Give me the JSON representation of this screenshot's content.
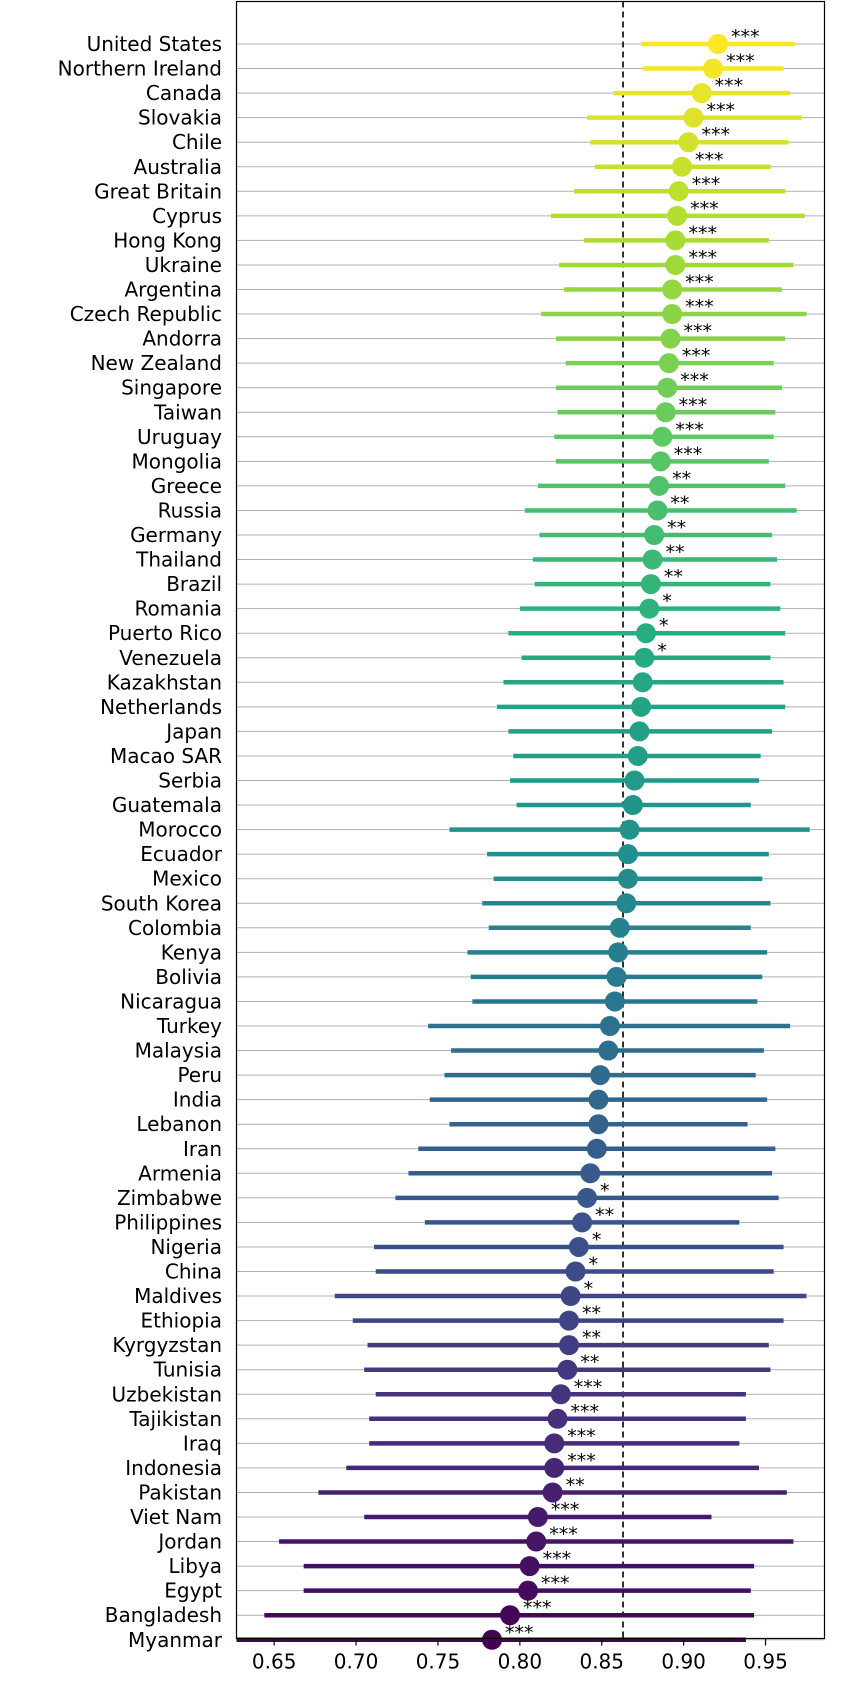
{
  "chart_data": {
    "type": "scatter",
    "title": "",
    "xlabel": "",
    "ylabel": "",
    "xlim": [
      0.627,
      0.986
    ],
    "xticks": [
      0.65,
      0.7,
      0.75,
      0.8,
      0.85,
      0.9,
      0.95
    ],
    "xtick_labels": [
      "0.65",
      "0.70",
      "0.75",
      "0.80",
      "0.85",
      "0.90",
      "0.95"
    ],
    "reference_line": 0.863,
    "grid": "horizontal",
    "colormap": "viridis",
    "points": [
      {
        "country": "United States",
        "value": 0.921,
        "low": 0.874,
        "high": 0.968,
        "sig": "***"
      },
      {
        "country": "Northern Ireland",
        "value": 0.918,
        "low": 0.875,
        "high": 0.961,
        "sig": "***"
      },
      {
        "country": "Canada",
        "value": 0.911,
        "low": 0.857,
        "high": 0.965,
        "sig": "***"
      },
      {
        "country": "Slovakia",
        "value": 0.906,
        "low": 0.841,
        "high": 0.972,
        "sig": "***"
      },
      {
        "country": "Chile",
        "value": 0.903,
        "low": 0.843,
        "high": 0.964,
        "sig": "***"
      },
      {
        "country": "Australia",
        "value": 0.899,
        "low": 0.846,
        "high": 0.953,
        "sig": "***"
      },
      {
        "country": "Great Britain",
        "value": 0.897,
        "low": 0.833,
        "high": 0.962,
        "sig": "***"
      },
      {
        "country": "Cyprus",
        "value": 0.896,
        "low": 0.819,
        "high": 0.974,
        "sig": "***"
      },
      {
        "country": "Hong Kong",
        "value": 0.895,
        "low": 0.839,
        "high": 0.952,
        "sig": "***"
      },
      {
        "country": "Ukraine",
        "value": 0.895,
        "low": 0.824,
        "high": 0.967,
        "sig": "***"
      },
      {
        "country": "Argentina",
        "value": 0.893,
        "low": 0.827,
        "high": 0.96,
        "sig": "***"
      },
      {
        "country": "Czech Republic",
        "value": 0.893,
        "low": 0.813,
        "high": 0.975,
        "sig": "***"
      },
      {
        "country": "Andorra",
        "value": 0.892,
        "low": 0.822,
        "high": 0.962,
        "sig": "***"
      },
      {
        "country": "New Zealand",
        "value": 0.891,
        "low": 0.828,
        "high": 0.955,
        "sig": "***"
      },
      {
        "country": "Singapore",
        "value": 0.89,
        "low": 0.822,
        "high": 0.96,
        "sig": "***"
      },
      {
        "country": "Taiwan",
        "value": 0.889,
        "low": 0.823,
        "high": 0.956,
        "sig": "***"
      },
      {
        "country": "Uruguay",
        "value": 0.887,
        "low": 0.821,
        "high": 0.955,
        "sig": "***"
      },
      {
        "country": "Mongolia",
        "value": 0.886,
        "low": 0.822,
        "high": 0.952,
        "sig": "***"
      },
      {
        "country": "Greece",
        "value": 0.885,
        "low": 0.811,
        "high": 0.962,
        "sig": "**"
      },
      {
        "country": "Russia",
        "value": 0.884,
        "low": 0.803,
        "high": 0.969,
        "sig": "**"
      },
      {
        "country": "Germany",
        "value": 0.882,
        "low": 0.812,
        "high": 0.954,
        "sig": "**"
      },
      {
        "country": "Thailand",
        "value": 0.881,
        "low": 0.808,
        "high": 0.957,
        "sig": "**"
      },
      {
        "country": "Brazil",
        "value": 0.88,
        "low": 0.809,
        "high": 0.953,
        "sig": "**"
      },
      {
        "country": "Romania",
        "value": 0.879,
        "low": 0.8,
        "high": 0.959,
        "sig": "*"
      },
      {
        "country": "Puerto Rico",
        "value": 0.877,
        "low": 0.793,
        "high": 0.962,
        "sig": "*"
      },
      {
        "country": "Venezuela",
        "value": 0.876,
        "low": 0.801,
        "high": 0.953,
        "sig": "*"
      },
      {
        "country": "Kazakhstan",
        "value": 0.875,
        "low": 0.79,
        "high": 0.961,
        "sig": ""
      },
      {
        "country": "Netherlands",
        "value": 0.874,
        "low": 0.786,
        "high": 0.962,
        "sig": ""
      },
      {
        "country": "Japan",
        "value": 0.873,
        "low": 0.793,
        "high": 0.954,
        "sig": ""
      },
      {
        "country": "Macao SAR",
        "value": 0.872,
        "low": 0.796,
        "high": 0.947,
        "sig": ""
      },
      {
        "country": "Serbia",
        "value": 0.87,
        "low": 0.794,
        "high": 0.946,
        "sig": ""
      },
      {
        "country": "Guatemala",
        "value": 0.869,
        "low": 0.798,
        "high": 0.941,
        "sig": ""
      },
      {
        "country": "Morocco",
        "value": 0.867,
        "low": 0.757,
        "high": 0.977,
        "sig": ""
      },
      {
        "country": "Ecuador",
        "value": 0.866,
        "low": 0.78,
        "high": 0.952,
        "sig": ""
      },
      {
        "country": "Mexico",
        "value": 0.866,
        "low": 0.784,
        "high": 0.948,
        "sig": ""
      },
      {
        "country": "South Korea",
        "value": 0.865,
        "low": 0.777,
        "high": 0.953,
        "sig": ""
      },
      {
        "country": "Colombia",
        "value": 0.861,
        "low": 0.781,
        "high": 0.941,
        "sig": ""
      },
      {
        "country": "Kenya",
        "value": 0.86,
        "low": 0.768,
        "high": 0.951,
        "sig": ""
      },
      {
        "country": "Bolivia",
        "value": 0.859,
        "low": 0.77,
        "high": 0.948,
        "sig": ""
      },
      {
        "country": "Nicaragua",
        "value": 0.858,
        "low": 0.771,
        "high": 0.945,
        "sig": ""
      },
      {
        "country": "Turkey",
        "value": 0.855,
        "low": 0.744,
        "high": 0.965,
        "sig": ""
      },
      {
        "country": "Malaysia",
        "value": 0.854,
        "low": 0.758,
        "high": 0.949,
        "sig": ""
      },
      {
        "country": "Peru",
        "value": 0.849,
        "low": 0.754,
        "high": 0.944,
        "sig": ""
      },
      {
        "country": "India",
        "value": 0.848,
        "low": 0.745,
        "high": 0.951,
        "sig": ""
      },
      {
        "country": "Lebanon",
        "value": 0.848,
        "low": 0.757,
        "high": 0.939,
        "sig": ""
      },
      {
        "country": "Iran",
        "value": 0.847,
        "low": 0.738,
        "high": 0.956,
        "sig": ""
      },
      {
        "country": "Armenia",
        "value": 0.843,
        "low": 0.732,
        "high": 0.954,
        "sig": ""
      },
      {
        "country": "Zimbabwe",
        "value": 0.841,
        "low": 0.724,
        "high": 0.958,
        "sig": "*"
      },
      {
        "country": "Philippines",
        "value": 0.838,
        "low": 0.742,
        "high": 0.934,
        "sig": "**"
      },
      {
        "country": "Nigeria",
        "value": 0.836,
        "low": 0.711,
        "high": 0.961,
        "sig": "*"
      },
      {
        "country": "China",
        "value": 0.834,
        "low": 0.712,
        "high": 0.955,
        "sig": "*"
      },
      {
        "country": "Maldives",
        "value": 0.831,
        "low": 0.687,
        "high": 0.975,
        "sig": "*"
      },
      {
        "country": "Ethiopia",
        "value": 0.83,
        "low": 0.698,
        "high": 0.961,
        "sig": "**"
      },
      {
        "country": "Kyrgyzstan",
        "value": 0.83,
        "low": 0.707,
        "high": 0.952,
        "sig": "**"
      },
      {
        "country": "Tunisia",
        "value": 0.829,
        "low": 0.705,
        "high": 0.953,
        "sig": "**"
      },
      {
        "country": "Uzbekistan",
        "value": 0.825,
        "low": 0.712,
        "high": 0.938,
        "sig": "***"
      },
      {
        "country": "Tajikistan",
        "value": 0.823,
        "low": 0.708,
        "high": 0.938,
        "sig": "***"
      },
      {
        "country": "Iraq",
        "value": 0.821,
        "low": 0.708,
        "high": 0.934,
        "sig": "***"
      },
      {
        "country": "Indonesia",
        "value": 0.821,
        "low": 0.694,
        "high": 0.946,
        "sig": "***"
      },
      {
        "country": "Pakistan",
        "value": 0.82,
        "low": 0.677,
        "high": 0.963,
        "sig": "**"
      },
      {
        "country": "Viet Nam",
        "value": 0.811,
        "low": 0.705,
        "high": 0.917,
        "sig": "***"
      },
      {
        "country": "Jordan",
        "value": 0.81,
        "low": 0.653,
        "high": 0.967,
        "sig": "***"
      },
      {
        "country": "Libya",
        "value": 0.806,
        "low": 0.668,
        "high": 0.943,
        "sig": "***"
      },
      {
        "country": "Egypt",
        "value": 0.805,
        "low": 0.668,
        "high": 0.941,
        "sig": "***"
      },
      {
        "country": "Bangladesh",
        "value": 0.794,
        "low": 0.644,
        "high": 0.943,
        "sig": "***"
      },
      {
        "country": "Myanmar",
        "value": 0.783,
        "low": 0.627,
        "high": 0.938,
        "sig": "***"
      }
    ]
  }
}
